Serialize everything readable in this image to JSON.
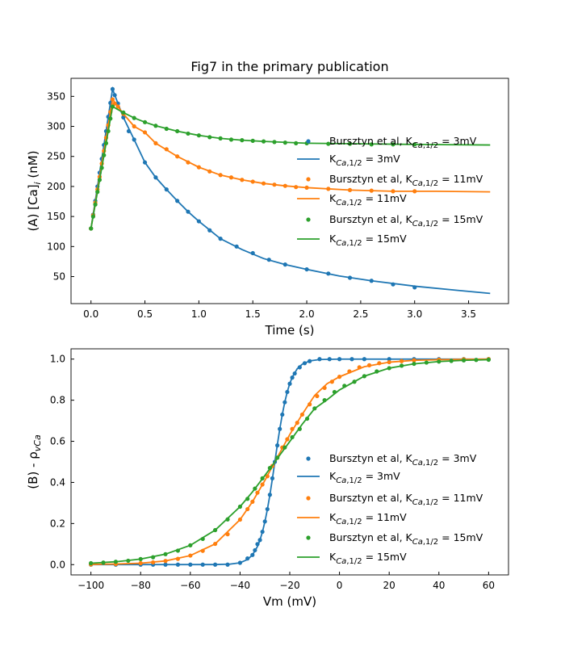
{
  "title": "Fig7 in the primary publication",
  "colors": {
    "blue": "#1f77b4",
    "orange": "#ff7f0e",
    "green": "#2ca02c"
  },
  "chart_data": [
    {
      "type": "line",
      "xlabel": "Time (s)",
      "ylabel_main": "(A) [Ca]",
      "ylabel_sub": "i",
      "ylabel_tail": " (nM)",
      "xlim": [
        -0.185,
        3.87
      ],
      "ylim": [
        5,
        380
      ],
      "xticks": [
        0.0,
        0.5,
        1.0,
        1.5,
        2.0,
        2.5,
        3.0,
        3.5
      ],
      "xtick_labels": [
        "0.0",
        "0.5",
        "1.0",
        "1.5",
        "2.0",
        "2.5",
        "3.0",
        "3.5"
      ],
      "yticks": [
        50,
        100,
        150,
        200,
        250,
        300,
        350
      ],
      "ytick_labels": [
        "50",
        "100",
        "150",
        "200",
        "250",
        "300",
        "350"
      ],
      "legend_placement": "center-right",
      "series": [
        {
          "name": "Bursztyn et al, K_{Ca,1/2} = 3mV",
          "kind": "points",
          "color": "blue",
          "x": [
            0,
            0.02,
            0.04,
            0.06,
            0.08,
            0.1,
            0.12,
            0.14,
            0.16,
            0.18,
            0.2,
            0.22,
            0.25,
            0.3,
            0.35,
            0.4,
            0.5,
            0.6,
            0.7,
            0.8,
            0.9,
            1.0,
            1.1,
            1.2,
            1.35,
            1.5,
            1.65,
            1.8,
            2.0,
            2.2,
            2.4,
            2.6,
            2.8,
            3.0
          ],
          "y": [
            130,
            153,
            176,
            200,
            223,
            246,
            269,
            292,
            316,
            339,
            362,
            352,
            338,
            315,
            292,
            278,
            240,
            215,
            195,
            176,
            158,
            142,
            127,
            113,
            100,
            89,
            78,
            70,
            62,
            55,
            48,
            43,
            37,
            32
          ]
        },
        {
          "name": "K_{Ca,1/2} = 3mV",
          "kind": "line",
          "color": "blue",
          "x": [
            0,
            0.2,
            0.25,
            0.3,
            0.4,
            0.5,
            0.6,
            0.7,
            0.8,
            0.9,
            1.0,
            1.2,
            1.4,
            1.6,
            1.8,
            2.0,
            2.3,
            2.6,
            3.0,
            3.4,
            3.7
          ],
          "y": [
            130,
            362,
            338,
            315,
            278,
            240,
            215,
            195,
            176,
            158,
            142,
            113,
            95,
            80,
            70,
            62,
            51,
            43,
            34,
            27,
            22
          ]
        },
        {
          "name": "Bursztyn et al, K_{Ca,1/2} = 11mV",
          "kind": "points",
          "color": "orange",
          "x": [
            0,
            0.02,
            0.04,
            0.06,
            0.08,
            0.1,
            0.12,
            0.14,
            0.16,
            0.18,
            0.2,
            0.22,
            0.25,
            0.3,
            0.4,
            0.5,
            0.6,
            0.7,
            0.8,
            0.9,
            1.0,
            1.1,
            1.2,
            1.3,
            1.4,
            1.5,
            1.6,
            1.7,
            1.8,
            1.9,
            2.0,
            2.2,
            2.4,
            2.6,
            2.8,
            3.0
          ],
          "y": [
            130,
            152,
            173,
            195,
            216,
            238,
            259,
            281,
            302,
            324,
            345,
            338,
            333,
            321,
            300,
            290,
            272,
            262,
            250,
            240,
            232,
            225,
            219,
            215,
            211,
            208,
            205,
            203,
            201,
            199,
            198,
            196,
            194,
            193,
            192,
            192
          ]
        },
        {
          "name": "K_{Ca,1/2} = 11mV",
          "kind": "line",
          "color": "orange",
          "x": [
            0,
            0.2,
            0.3,
            0.4,
            0.5,
            0.6,
            0.8,
            1.0,
            1.2,
            1.4,
            1.6,
            1.8,
            2.0,
            2.4,
            2.8,
            3.2,
            3.7
          ],
          "y": [
            130,
            345,
            321,
            300,
            290,
            272,
            250,
            232,
            219,
            211,
            205,
            201,
            198,
            194,
            192,
            192,
            191
          ]
        },
        {
          "name": "Bursztyn et al, K_{Ca,1/2} = 15mV",
          "kind": "points",
          "color": "green",
          "x": [
            0,
            0.02,
            0.04,
            0.06,
            0.08,
            0.1,
            0.12,
            0.14,
            0.16,
            0.18,
            0.2,
            0.3,
            0.4,
            0.5,
            0.6,
            0.7,
            0.8,
            0.9,
            1.0,
            1.1,
            1.2,
            1.3,
            1.4,
            1.5,
            1.6,
            1.7,
            1.8,
            1.9,
            2.0,
            2.2,
            2.4,
            2.6,
            2.8,
            3.0
          ],
          "y": [
            130,
            150,
            170,
            191,
            211,
            231,
            252,
            272,
            292,
            313,
            333,
            323,
            314,
            307,
            301,
            296,
            292,
            288,
            285,
            282,
            280,
            278,
            277,
            276,
            275,
            274,
            273,
            272,
            272,
            271,
            271,
            270,
            270,
            270
          ]
        },
        {
          "name": "K_{Ca,1/2} = 15mV",
          "kind": "line",
          "color": "green",
          "x": [
            0,
            0.2,
            0.3,
            0.4,
            0.5,
            0.6,
            0.8,
            1.0,
            1.2,
            1.4,
            1.6,
            2.0,
            2.5,
            3.0,
            3.7
          ],
          "y": [
            130,
            333,
            323,
            314,
            307,
            301,
            292,
            285,
            280,
            277,
            275,
            272,
            271,
            270,
            269
          ]
        }
      ]
    },
    {
      "type": "line",
      "xlabel": "Vm (mV)",
      "ylabel_main": "(B) - ρ",
      "ylabel_sub": "vCa",
      "ylabel_tail": "",
      "xlim": [
        -108,
        68
      ],
      "ylim": [
        -0.05,
        1.05
      ],
      "xticks": [
        -100,
        -80,
        -60,
        -40,
        -20,
        0,
        20,
        40,
        60
      ],
      "xtick_labels": [
        "−100",
        "−80",
        "−60",
        "−40",
        "−20",
        "0",
        "20",
        "40",
        "60"
      ],
      "yticks": [
        0.0,
        0.2,
        0.4,
        0.6,
        0.8,
        1.0
      ],
      "ytick_labels": [
        "0.0",
        "0.2",
        "0.4",
        "0.6",
        "0.8",
        "1.0"
      ],
      "legend_placement": "lower-right",
      "series": [
        {
          "name": "Bursztyn et al, K_{Ca,1/2} = 3mV",
          "kind": "points",
          "color": "blue",
          "x": [
            -100,
            -90,
            -80,
            -75,
            -70,
            -65,
            -60,
            -55,
            -50,
            -45,
            -40,
            -37,
            -35,
            -34,
            -33,
            -32,
            -31,
            -30,
            -29,
            -28,
            -27,
            -26,
            -25,
            -24,
            -23,
            -22,
            -21,
            -20,
            -19,
            -18,
            -16,
            -14,
            -12,
            -8,
            -4,
            0,
            5,
            10,
            20,
            30,
            40,
            50,
            60
          ],
          "y": [
            0,
            0,
            0,
            0,
            0,
            0,
            0,
            0,
            0,
            0,
            0.009,
            0.03,
            0.047,
            0.07,
            0.1,
            0.12,
            0.16,
            0.21,
            0.27,
            0.34,
            0.42,
            0.5,
            0.58,
            0.66,
            0.73,
            0.79,
            0.84,
            0.88,
            0.91,
            0.93,
            0.96,
            0.98,
            0.99,
            1,
            1,
            1,
            1,
            1,
            1,
            1,
            1,
            1,
            1
          ]
        },
        {
          "name": "K_{Ca,1/2} = 3mV",
          "kind": "line",
          "color": "blue",
          "x": [
            -100,
            -50,
            -44,
            -40,
            -37,
            -35,
            -33,
            -32,
            -31,
            -30,
            -29,
            -28,
            -27,
            -26,
            -25,
            -24,
            -23,
            -22,
            -21,
            -20,
            -19,
            -17,
            -15,
            -12,
            -8,
            0,
            60
          ],
          "y": [
            0,
            0.0003,
            0.0025,
            0.009,
            0.025,
            0.047,
            0.088,
            0.119,
            0.159,
            0.209,
            0.269,
            0.339,
            0.417,
            0.5,
            0.583,
            0.661,
            0.731,
            0.791,
            0.841,
            0.881,
            0.912,
            0.953,
            0.975,
            0.991,
            0.998,
            1,
            1
          ]
        },
        {
          "name": "Bursztyn et al, K_{Ca,1/2} = 11mV",
          "kind": "points",
          "color": "orange",
          "x": [
            -100,
            -90,
            -80,
            -75,
            -70,
            -65,
            -60,
            -55,
            -50,
            -45,
            -40,
            -37,
            -35,
            -33,
            -31,
            -29,
            -27,
            -25,
            -23,
            -21,
            -19,
            -17,
            -15,
            -12,
            -9,
            -6,
            -3,
            0,
            4,
            8,
            12,
            16,
            20,
            25,
            30,
            40,
            50,
            60
          ],
          "y": [
            0.001,
            0.003,
            0.007,
            0.011,
            0.018,
            0.028,
            0.044,
            0.067,
            0.101,
            0.148,
            0.219,
            0.27,
            0.306,
            0.35,
            0.39,
            0.43,
            0.48,
            0.52,
            0.57,
            0.61,
            0.66,
            0.69,
            0.73,
            0.78,
            0.82,
            0.86,
            0.89,
            0.914,
            0.94,
            0.96,
            0.97,
            0.98,
            0.985,
            0.99,
            0.994,
            0.997,
            0.999,
            1
          ]
        },
        {
          "name": "K_{Ca,1/2} = 11mV",
          "kind": "line",
          "color": "orange",
          "x": [
            -100,
            -90,
            -80,
            -70,
            -60,
            -50,
            -40,
            -35,
            -30,
            -26,
            -20,
            -15,
            -10,
            -5,
            0,
            10,
            20,
            30,
            40,
            50,
            60
          ],
          "y": [
            0.001,
            0.003,
            0.007,
            0.018,
            0.044,
            0.101,
            0.219,
            0.306,
            0.41,
            0.5,
            0.633,
            0.731,
            0.823,
            0.88,
            0.914,
            0.963,
            0.985,
            0.994,
            0.997,
            0.999,
            1
          ]
        },
        {
          "name": "Bursztyn et al, K_{Ca,1/2} = 15mV",
          "kind": "points",
          "color": "green",
          "x": [
            -100,
            -95,
            -90,
            -85,
            -80,
            -75,
            -70,
            -65,
            -60,
            -55,
            -50,
            -45,
            -40,
            -37,
            -34,
            -31,
            -28,
            -25,
            -22,
            -19,
            -16,
            -13,
            -10,
            -6,
            -2,
            2,
            6,
            10,
            15,
            20,
            25,
            30,
            35,
            40,
            45,
            50,
            55,
            60
          ],
          "y": [
            0.007,
            0.01,
            0.014,
            0.019,
            0.027,
            0.036,
            0.051,
            0.068,
            0.094,
            0.125,
            0.168,
            0.22,
            0.282,
            0.32,
            0.37,
            0.42,
            0.47,
            0.52,
            0.57,
            0.62,
            0.66,
            0.71,
            0.76,
            0.8,
            0.84,
            0.87,
            0.89,
            0.917,
            0.94,
            0.956,
            0.968,
            0.977,
            0.983,
            0.988,
            0.991,
            0.994,
            0.996,
            0.997
          ]
        },
        {
          "name": "K_{Ca,1/2} = 15mV",
          "kind": "line",
          "color": "green",
          "x": [
            -100,
            -90,
            -80,
            -70,
            -60,
            -50,
            -40,
            -35,
            -30,
            -26,
            -20,
            -15,
            -10,
            -5,
            0,
            10,
            20,
            30,
            40,
            50,
            60
          ],
          "y": [
            0.007,
            0.014,
            0.027,
            0.051,
            0.094,
            0.168,
            0.282,
            0.354,
            0.434,
            0.5,
            0.599,
            0.683,
            0.759,
            0.802,
            0.85,
            0.917,
            0.956,
            0.977,
            0.988,
            0.994,
            0.997
          ]
        }
      ]
    }
  ]
}
